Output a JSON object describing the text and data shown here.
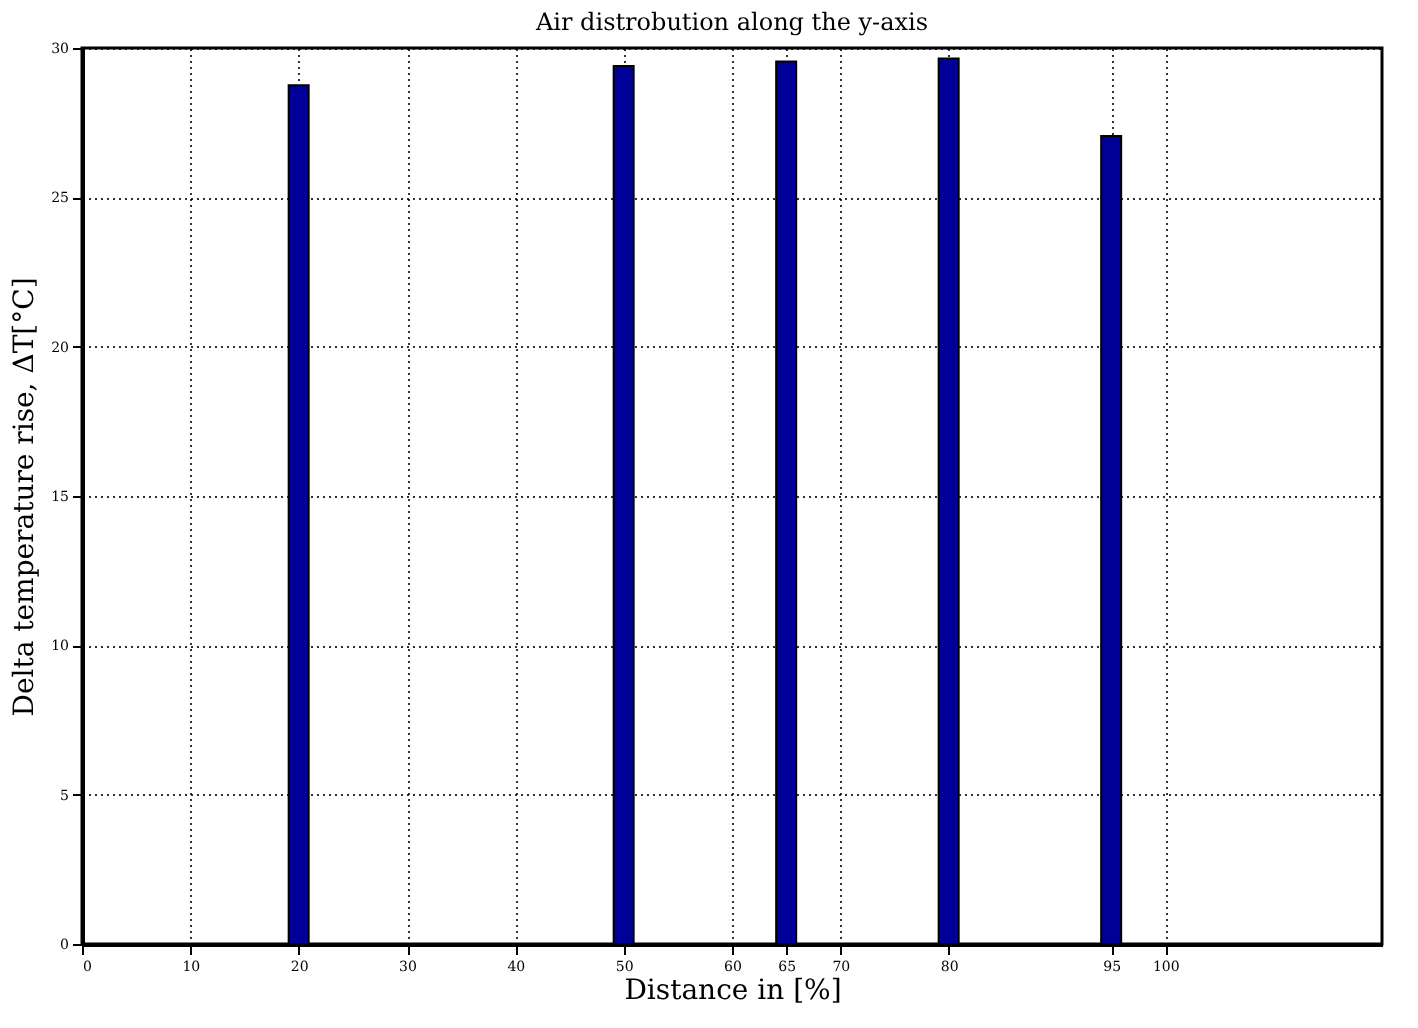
{
  "chart_data": {
    "type": "bar",
    "title": "Air distrobution along the y-axis",
    "xlabel": "Distance in [%]",
    "ylabel": "Delta temperature rise, ΔT[°C]",
    "x": [
      20,
      50,
      65,
      80,
      95
    ],
    "values": [
      28.75,
      29.4,
      29.55,
      29.65,
      27.05
    ],
    "color": "#000099",
    "xlim": [
      0,
      120
    ],
    "xticks": [
      0,
      10,
      20,
      30,
      40,
      50,
      60,
      65,
      70,
      80,
      95,
      100
    ],
    "ylim": [
      0,
      30
    ],
    "yticks": [
      0,
      5,
      10,
      15,
      20,
      25,
      30
    ],
    "grid": true
  }
}
